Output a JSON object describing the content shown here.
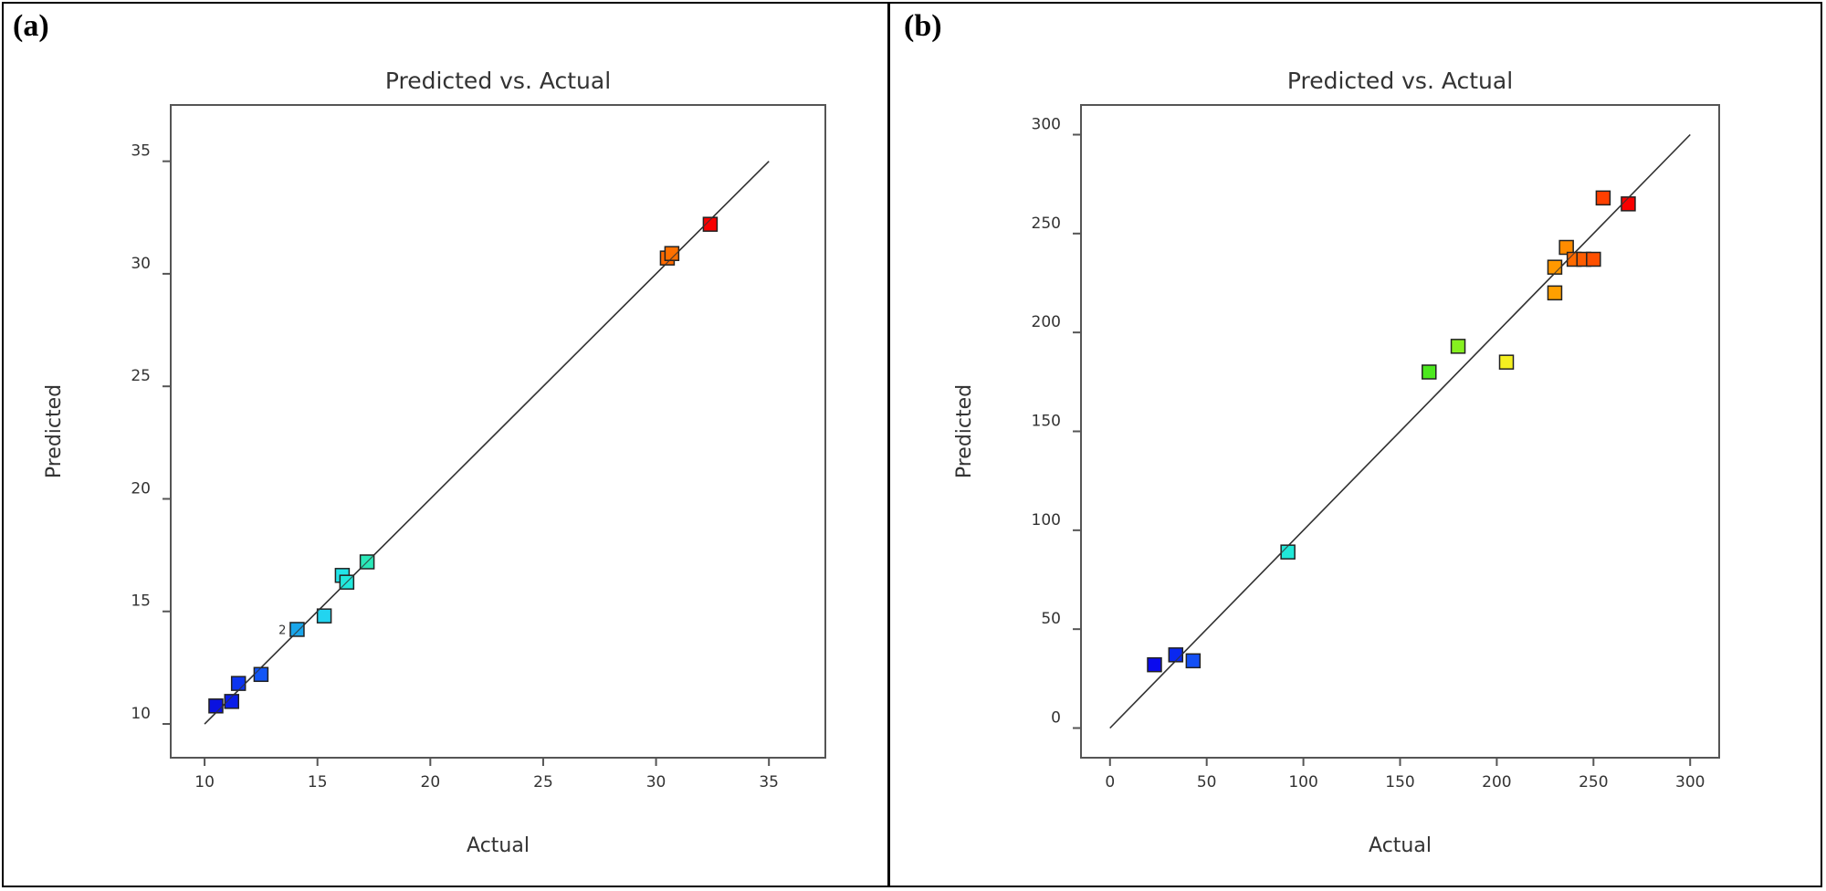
{
  "panels": {
    "a": "(a)",
    "b": "(b)"
  },
  "chart_data": [
    {
      "type": "scatter",
      "title": "Predicted vs. Actual",
      "xlabel": "Actual",
      "ylabel": "Predicted",
      "xlim": [
        8.5,
        37.5
      ],
      "ylim": [
        8.5,
        37.5
      ],
      "xticks": [
        10,
        15,
        20,
        25,
        30,
        35
      ],
      "yticks": [
        10,
        15,
        20,
        25,
        30,
        35
      ],
      "reference_line": [
        [
          10,
          10
        ],
        [
          35,
          35
        ]
      ],
      "grid": false,
      "marker": "square",
      "points": [
        {
          "x": 10.5,
          "y": 10.8,
          "color": "#0a12e0"
        },
        {
          "x": 11.2,
          "y": 11.0,
          "color": "#0a1ee8"
        },
        {
          "x": 11.5,
          "y": 11.8,
          "color": "#0d35f0"
        },
        {
          "x": 12.5,
          "y": 12.2,
          "color": "#1256f5"
        },
        {
          "x": 14.1,
          "y": 14.2,
          "color": "#1aa6ea",
          "label": "2"
        },
        {
          "x": 15.3,
          "y": 14.8,
          "color": "#22d4f0"
        },
        {
          "x": 16.1,
          "y": 16.6,
          "color": "#22e4e8"
        },
        {
          "x": 16.3,
          "y": 16.3,
          "color": "#22e8dc"
        },
        {
          "x": 17.2,
          "y": 17.2,
          "color": "#2ae8b8"
        },
        {
          "x": 30.5,
          "y": 30.7,
          "color": "#ff6a00"
        },
        {
          "x": 30.7,
          "y": 30.9,
          "color": "#ff7000"
        },
        {
          "x": 32.4,
          "y": 32.2,
          "color": "#f80000"
        }
      ]
    },
    {
      "type": "scatter",
      "title": "Predicted vs. Actual",
      "xlabel": "Actual",
      "ylabel": "Predicted",
      "xlim": [
        -15,
        315
      ],
      "ylim": [
        -15,
        315
      ],
      "xticks": [
        0,
        50,
        100,
        150,
        200,
        250,
        300
      ],
      "yticks": [
        0,
        50,
        100,
        150,
        200,
        250,
        300
      ],
      "reference_line": [
        [
          0,
          0
        ],
        [
          300,
          300
        ]
      ],
      "grid": false,
      "marker": "square",
      "points": [
        {
          "x": 23,
          "y": 32,
          "color": "#0a0aee"
        },
        {
          "x": 34,
          "y": 37,
          "color": "#0a28f0"
        },
        {
          "x": 43,
          "y": 34,
          "color": "#1450f5"
        },
        {
          "x": 92,
          "y": 89,
          "color": "#20e8d8"
        },
        {
          "x": 165,
          "y": 180,
          "color": "#4ce81e"
        },
        {
          "x": 180,
          "y": 193,
          "color": "#86f020"
        },
        {
          "x": 205,
          "y": 185,
          "color": "#f4f020"
        },
        {
          "x": 230,
          "y": 220,
          "color": "#ffa000"
        },
        {
          "x": 230,
          "y": 233,
          "color": "#ff9800"
        },
        {
          "x": 236,
          "y": 243,
          "color": "#ff8c00"
        },
        {
          "x": 240,
          "y": 237,
          "color": "#ff6a00"
        },
        {
          "x": 245,
          "y": 237,
          "color": "#ff5c00"
        },
        {
          "x": 250,
          "y": 237,
          "color": "#ff5000"
        },
        {
          "x": 255,
          "y": 268,
          "color": "#ff4000"
        },
        {
          "x": 268,
          "y": 265,
          "color": "#f80000"
        }
      ]
    }
  ]
}
